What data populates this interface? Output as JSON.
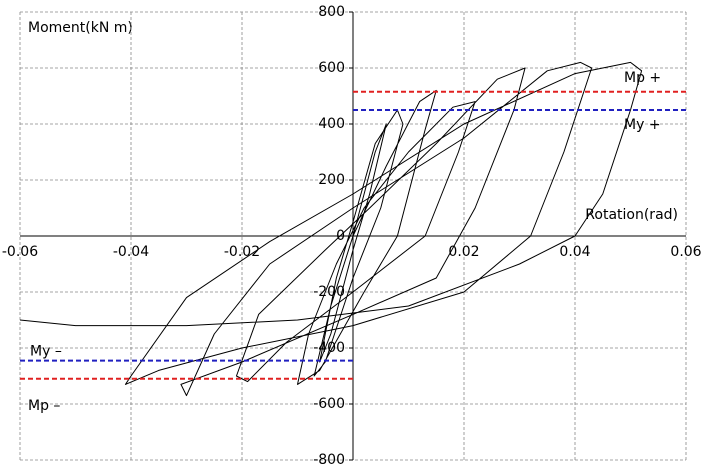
{
  "chart_data": {
    "type": "line",
    "y_axis_label": "Moment(kN m)",
    "x_axis_label": "Rotation(rad)",
    "xlim": [
      -0.06,
      0.06
    ],
    "ylim": [
      -800,
      800
    ],
    "xticks": [
      -0.06,
      -0.04,
      -0.02,
      0.02,
      0.04,
      0.06
    ],
    "yticks": [
      -800,
      -600,
      -400,
      -200,
      0,
      200,
      400,
      600,
      800
    ],
    "grid": true,
    "color": "#000000",
    "x": [
      0,
      0.004,
      0.006,
      0.003,
      0,
      -0.004,
      -0.006,
      -0.003,
      0,
      0.004,
      0.008,
      0.009,
      0.005,
      0,
      -0.005,
      -0.007,
      -0.004,
      0,
      0.006,
      0.012,
      0.015,
      0.013,
      0.008,
      0.002,
      -0.006,
      -0.01,
      -0.008,
      -0.003,
      0.002,
      0.01,
      0.018,
      0.022,
      0.019,
      0.013,
      0,
      -0.012,
      -0.019,
      -0.021,
      -0.017,
      -0.005,
      0.003,
      0.015,
      0.026,
      0.031,
      0.029,
      0.022,
      0.015,
      0,
      -0.02,
      -0.031,
      -0.03,
      -0.025,
      -0.015,
      0,
      0.02,
      0.035,
      0.041,
      0.043,
      0.038,
      0.032,
      0.02,
      0,
      -0.02,
      -0.035,
      -0.041,
      -0.04,
      -0.03,
      -0.015,
      0,
      0.02,
      0.04,
      0.05,
      0.052,
      0.05,
      0.045,
      0.04,
      0.03,
      0.01,
      -0.01,
      -0.03,
      -0.05,
      -0.06
    ],
    "values": [
      0,
      300,
      400,
      150,
      -50,
      -350,
      -450,
      -150,
      50,
      330,
      450,
      400,
      100,
      -150,
      -450,
      -500,
      -250,
      0,
      250,
      480,
      520,
      380,
      0,
      -200,
      -480,
      -530,
      -350,
      -100,
      100,
      300,
      460,
      480,
      300,
      0,
      -200,
      -380,
      -520,
      -500,
      -280,
      -50,
      100,
      330,
      560,
      600,
      450,
      100,
      -150,
      -280,
      -450,
      -530,
      -570,
      -350,
      -100,
      100,
      350,
      590,
      620,
      600,
      300,
      0,
      -200,
      -320,
      -400,
      -480,
      -530,
      -500,
      -220,
      -20,
      150,
      400,
      580,
      620,
      590,
      450,
      150,
      0,
      -100,
      -250,
      -300,
      -320,
      -320,
      -300
    ],
    "reference_lines": [
      {
        "label": "Mp +",
        "value": 515,
        "color": "#e02020",
        "xspan": [
          0,
          0.06
        ]
      },
      {
        "label": "My +",
        "value": 450,
        "color": "#2020c0",
        "xspan": [
          0,
          0.06
        ]
      },
      {
        "label": "My –",
        "value": -445,
        "color": "#2020c0",
        "xspan": [
          -0.06,
          0
        ]
      },
      {
        "label": "Mp –",
        "value": -510,
        "color": "#e02020",
        "xspan": [
          -0.06,
          0
        ]
      }
    ]
  }
}
